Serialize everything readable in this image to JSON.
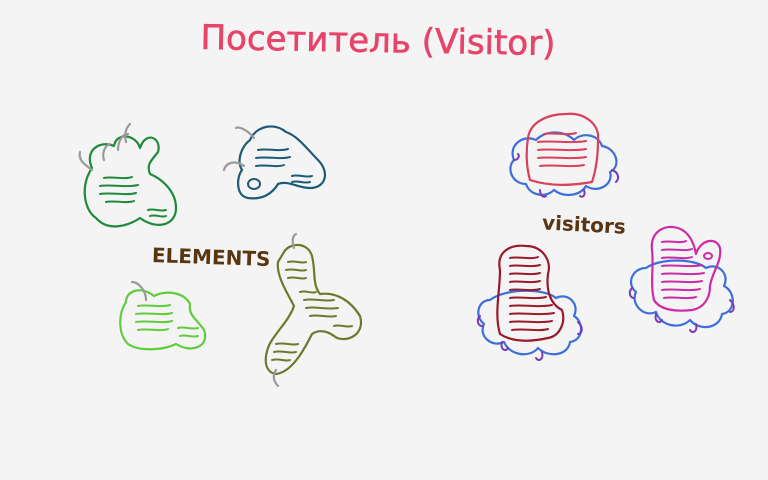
{
  "title": "Посетитель (Visitor)",
  "labels": {
    "elements": "ELEMENTS",
    "visitors": "visitors"
  },
  "colors": {
    "title": "#e8446a",
    "label": "#5a3512",
    "hook": "#9a9a9a",
    "visitor_outline": "#3d6fd8",
    "visitor_hook": "#7a3ab8",
    "element_dark_green": "#1f8a3a",
    "element_teal": "#1d5a78",
    "element_light_green": "#5fcc3e",
    "element_olive": "#6a7a2a",
    "visitor_red": "#d8405c",
    "visitor_maroon": "#9a1a2a",
    "visitor_magenta": "#cc2aa8"
  }
}
